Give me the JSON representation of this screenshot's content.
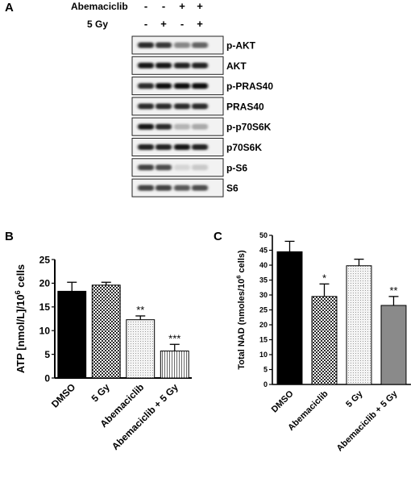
{
  "panel_a": {
    "letter": "A",
    "treatments": [
      {
        "label": "Abemaciclib",
        "signs": [
          "-",
          "-",
          "+",
          "+"
        ]
      },
      {
        "label": "5 Gy",
        "signs": [
          "-",
          "+",
          "-",
          "+"
        ]
      }
    ],
    "blots": [
      {
        "label": "p-AKT",
        "intensity": [
          0.85,
          0.8,
          0.45,
          0.6
        ]
      },
      {
        "label": "AKT",
        "intensity": [
          0.95,
          0.95,
          0.9,
          0.9
        ]
      },
      {
        "label": "p-PRAS40",
        "intensity": [
          0.85,
          1.0,
          1.0,
          1.0
        ]
      },
      {
        "label": "PRAS40",
        "intensity": [
          0.85,
          0.85,
          0.85,
          0.85
        ]
      },
      {
        "label": "p-p70S6K",
        "intensity": [
          0.95,
          0.85,
          0.25,
          0.3
        ]
      },
      {
        "label": "p70S6K",
        "intensity": [
          0.9,
          0.9,
          0.95,
          0.9
        ]
      },
      {
        "label": "p-S6",
        "intensity": [
          0.75,
          0.7,
          0.1,
          0.15
        ]
      },
      {
        "label": "S6",
        "intensity": [
          0.75,
          0.75,
          0.65,
          0.7
        ]
      }
    ]
  },
  "chart_data": [
    {
      "panel": "B",
      "type": "bar",
      "categories": [
        "DMSO",
        "5 Gy",
        "Abemaciclib",
        "Abemaciclib + 5 Gy"
      ],
      "values": [
        18.3,
        19.6,
        12.3,
        5.7
      ],
      "errors": [
        1.9,
        0.6,
        0.8,
        1.4
      ],
      "significance": [
        "",
        "",
        "**",
        "***"
      ],
      "ylabel_main": "ATP [nmol/L]/10",
      "ylabel_sup": "6",
      "ylabel_tail": " cells",
      "ylim": [
        0,
        25
      ],
      "yticks": [
        0,
        5,
        10,
        15,
        20,
        25
      ],
      "patterns": [
        "solid",
        "check",
        "dots",
        "vlines"
      ],
      "colors": [
        "#000000",
        "#5a5a5a",
        "#cfcfcf",
        "#8a8a8a"
      ]
    },
    {
      "panel": "C",
      "type": "bar",
      "categories": [
        "DMSO",
        "Abemaciclib",
        "5 Gy",
        "Abemaciclib + 5 Gy"
      ],
      "values": [
        44.5,
        29.5,
        39.8,
        26.5
      ],
      "errors": [
        3.5,
        4.2,
        2.2,
        3.0
      ],
      "significance": [
        "",
        "*",
        "",
        "**"
      ],
      "ylabel_main": "Total NAD (nmoles/10",
      "ylabel_sup": "6",
      "ylabel_tail": " cells)",
      "ylim": [
        0,
        50
      ],
      "yticks": [
        0,
        5,
        10,
        15,
        20,
        25,
        30,
        35,
        40,
        45,
        50
      ],
      "patterns": [
        "solid",
        "check",
        "dots",
        "gray"
      ],
      "colors": [
        "#000000",
        "#5a5a5a",
        "#cfcfcf",
        "#8a8a8a"
      ]
    }
  ]
}
